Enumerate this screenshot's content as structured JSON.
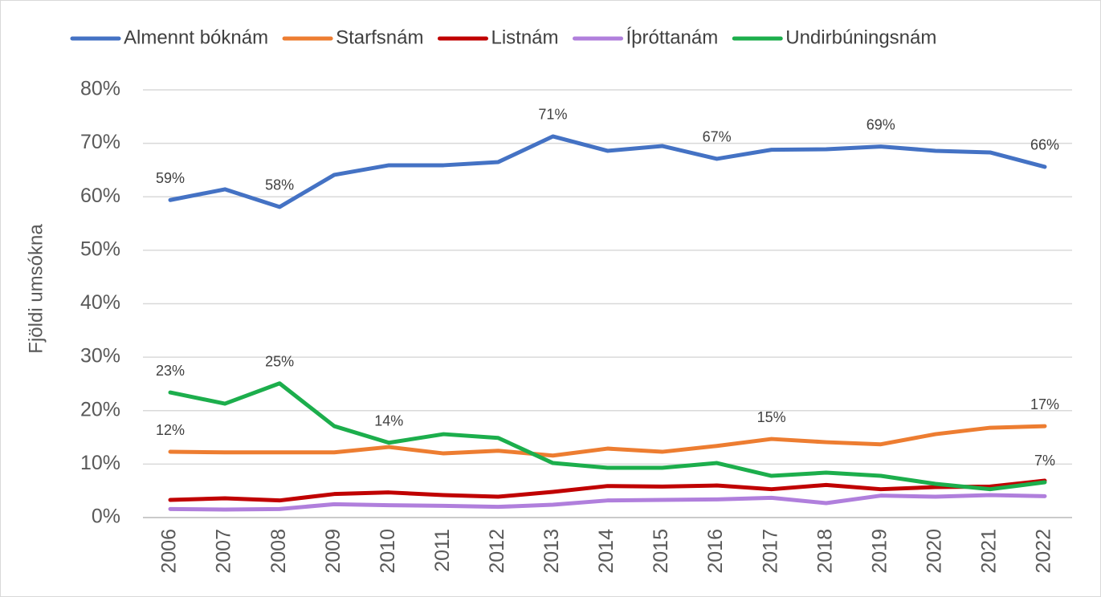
{
  "chart_data": {
    "type": "line",
    "y_label": "Fjöldi umsókna",
    "categories": [
      "2006",
      "2007",
      "2008",
      "2009",
      "2010",
      "2011",
      "2012",
      "2013",
      "2014",
      "2015",
      "2016",
      "2017",
      "2018",
      "2019",
      "2020",
      "2021",
      "2022"
    ],
    "series": [
      {
        "name": "Almennt bóknám",
        "color": "#4472c4",
        "values": [
          59.4,
          61.4,
          58.1,
          64.1,
          65.9,
          65.9,
          66.5,
          71.3,
          68.6,
          69.5,
          67.1,
          68.8,
          68.9,
          69.4,
          68.6,
          68.3,
          65.6
        ],
        "value_labels": [
          "59%",
          null,
          "58%",
          null,
          null,
          null,
          null,
          "71%",
          null,
          null,
          "67%",
          null,
          null,
          "69%",
          null,
          null,
          "66%"
        ]
      },
      {
        "name": "Starfsnám",
        "color": "#ed7d31",
        "values": [
          12.3,
          12.2,
          12.2,
          12.2,
          13.2,
          12.0,
          12.5,
          11.6,
          12.9,
          12.3,
          13.4,
          14.7,
          14.1,
          13.7,
          15.6,
          16.8,
          17.1
        ],
        "value_labels": [
          "12%",
          null,
          null,
          null,
          null,
          null,
          null,
          null,
          null,
          null,
          null,
          "15%",
          null,
          null,
          null,
          null,
          "17%"
        ]
      },
      {
        "name": "Listnám",
        "color": "#c00000",
        "values": [
          3.3,
          3.6,
          3.2,
          4.4,
          4.7,
          4.2,
          3.9,
          4.8,
          5.9,
          5.8,
          6.0,
          5.3,
          6.1,
          5.3,
          5.7,
          5.8,
          6.9
        ]
      },
      {
        "name": "Íþróttanám",
        "color": "#b07fdc",
        "values": [
          1.6,
          1.5,
          1.6,
          2.5,
          2.3,
          2.2,
          2.0,
          2.4,
          3.2,
          3.3,
          3.4,
          3.7,
          2.7,
          4.1,
          3.9,
          4.2,
          4.0
        ]
      },
      {
        "name": "Undirbúningsnám",
        "color": "#1cae4c",
        "values": [
          23.4,
          21.3,
          25.1,
          17.1,
          14.0,
          15.6,
          14.9,
          10.2,
          9.3,
          9.3,
          10.2,
          7.8,
          8.4,
          7.8,
          6.3,
          5.3,
          6.6
        ],
        "value_labels": [
          "23%",
          null,
          "25%",
          null,
          "14%",
          null,
          null,
          null,
          null,
          null,
          null,
          null,
          null,
          null,
          null,
          null,
          "7%"
        ]
      }
    ],
    "ylim": [
      0,
      80
    ],
    "yticks": [
      {
        "value": 0,
        "label": "0%"
      },
      {
        "value": 10,
        "label": "10%"
      },
      {
        "value": 20,
        "label": "20%"
      },
      {
        "value": 30,
        "label": "30%"
      },
      {
        "value": 40,
        "label": "40%"
      },
      {
        "value": 50,
        "label": "50%"
      },
      {
        "value": 60,
        "label": "60%"
      },
      {
        "value": 70,
        "label": "70%"
      },
      {
        "value": 80,
        "label": "80%"
      }
    ],
    "grid": true,
    "legend": "top"
  }
}
